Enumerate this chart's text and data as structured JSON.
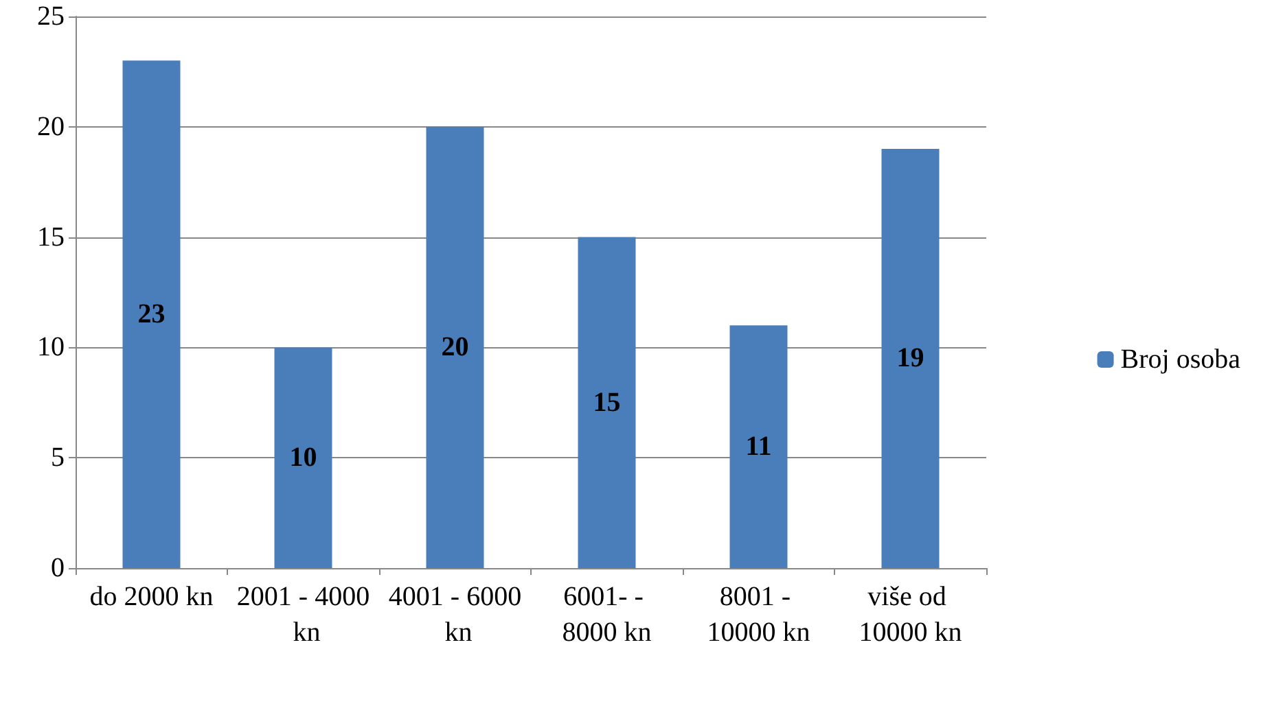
{
  "chart_data": {
    "type": "bar",
    "categories": [
      "do 2000 kn",
      "2001 - 4000 kn",
      "4001 - 6000 kn",
      "6001- - 8000 kn",
      "8001 - 10000 kn",
      "više od 10000 kn"
    ],
    "series": [
      {
        "name": "Broj osoba",
        "color": "#4a7ebb",
        "values": [
          23,
          10,
          20,
          15,
          11,
          19
        ]
      }
    ],
    "ylim": [
      0,
      25
    ],
    "yticks": [
      0,
      5,
      10,
      15,
      20,
      25
    ],
    "grid": "y",
    "legend": "right",
    "data_labels": true
  }
}
